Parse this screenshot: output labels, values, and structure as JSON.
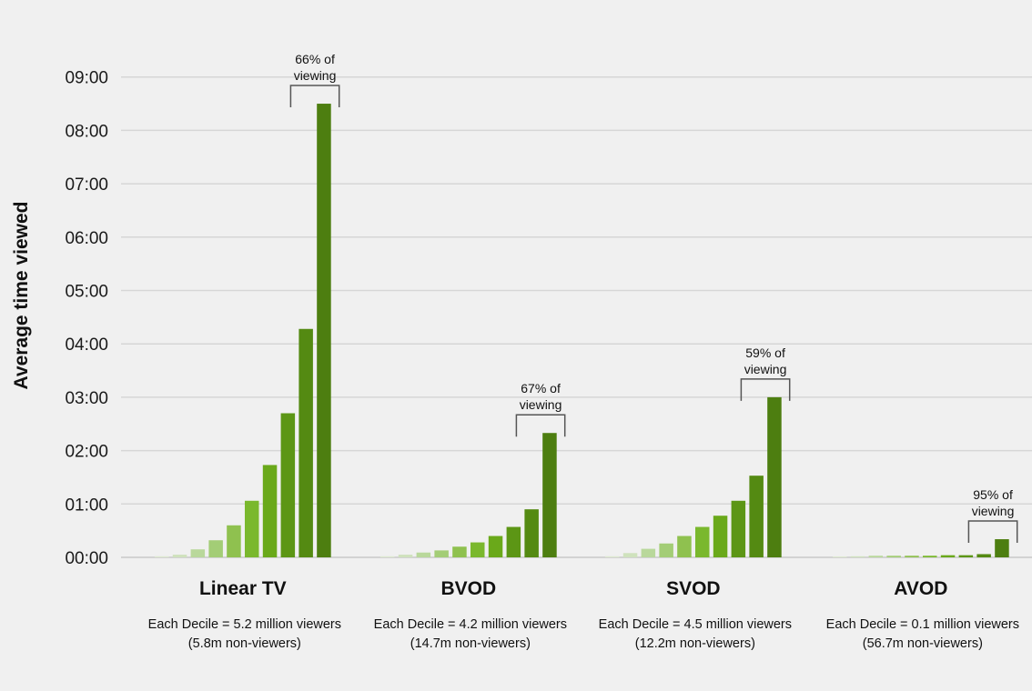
{
  "chart_data": {
    "type": "bar",
    "ylabel": "Average time viewed",
    "y_unit": "hours (hh:mm)",
    "ylim": [
      0,
      9
    ],
    "y_ticks": [
      "00:00",
      "01:00",
      "02:00",
      "03:00",
      "04:00",
      "05:00",
      "06:00",
      "07:00",
      "08:00",
      "09:00"
    ],
    "grid": true,
    "deciles": [
      1,
      2,
      3,
      4,
      5,
      6,
      7,
      8,
      9,
      10
    ],
    "decile_colors": [
      "#dde9cf",
      "#cfe2bd",
      "#b9d89b",
      "#a3cd76",
      "#8fc14f",
      "#7ab82d",
      "#6aa91a",
      "#5c9615",
      "#548a12",
      "#4d7e10"
    ],
    "groups": [
      {
        "title": "Linear TV",
        "note_line1": "Each Decile = 5.2 million viewers",
        "note_line2": "(5.8m non-viewers)",
        "values": [
          0.02,
          0.05,
          0.15,
          0.32,
          0.6,
          1.06,
          1.73,
          2.7,
          4.28,
          8.5
        ],
        "annotation_line1": "66% of",
        "annotation_line2": "viewing"
      },
      {
        "title": "BVOD",
        "note_line1": "Each Decile = 4.2 million viewers",
        "note_line2": "(14.7m non-viewers)",
        "values": [
          0.02,
          0.05,
          0.09,
          0.13,
          0.2,
          0.28,
          0.4,
          0.57,
          0.9,
          2.33
        ],
        "annotation_line1": "67% of",
        "annotation_line2": "viewing"
      },
      {
        "title": "SVOD",
        "note_line1": "Each Decile = 4.5 million viewers",
        "note_line2": "(12.2m non-viewers)",
        "values": [
          0.02,
          0.08,
          0.16,
          0.26,
          0.4,
          0.57,
          0.78,
          1.06,
          1.53,
          3.0
        ],
        "annotation_line1": "59% of",
        "annotation_line2": "viewing"
      },
      {
        "title": "AVOD",
        "note_line1": "Each Decile = 0.1 million viewers",
        "note_line2": "(56.7m non-viewers)",
        "values": [
          0.01,
          0.02,
          0.03,
          0.03,
          0.03,
          0.03,
          0.04,
          0.04,
          0.06,
          0.34
        ],
        "annotation_line1": "95% of",
        "annotation_line2": "viewing"
      }
    ]
  }
}
